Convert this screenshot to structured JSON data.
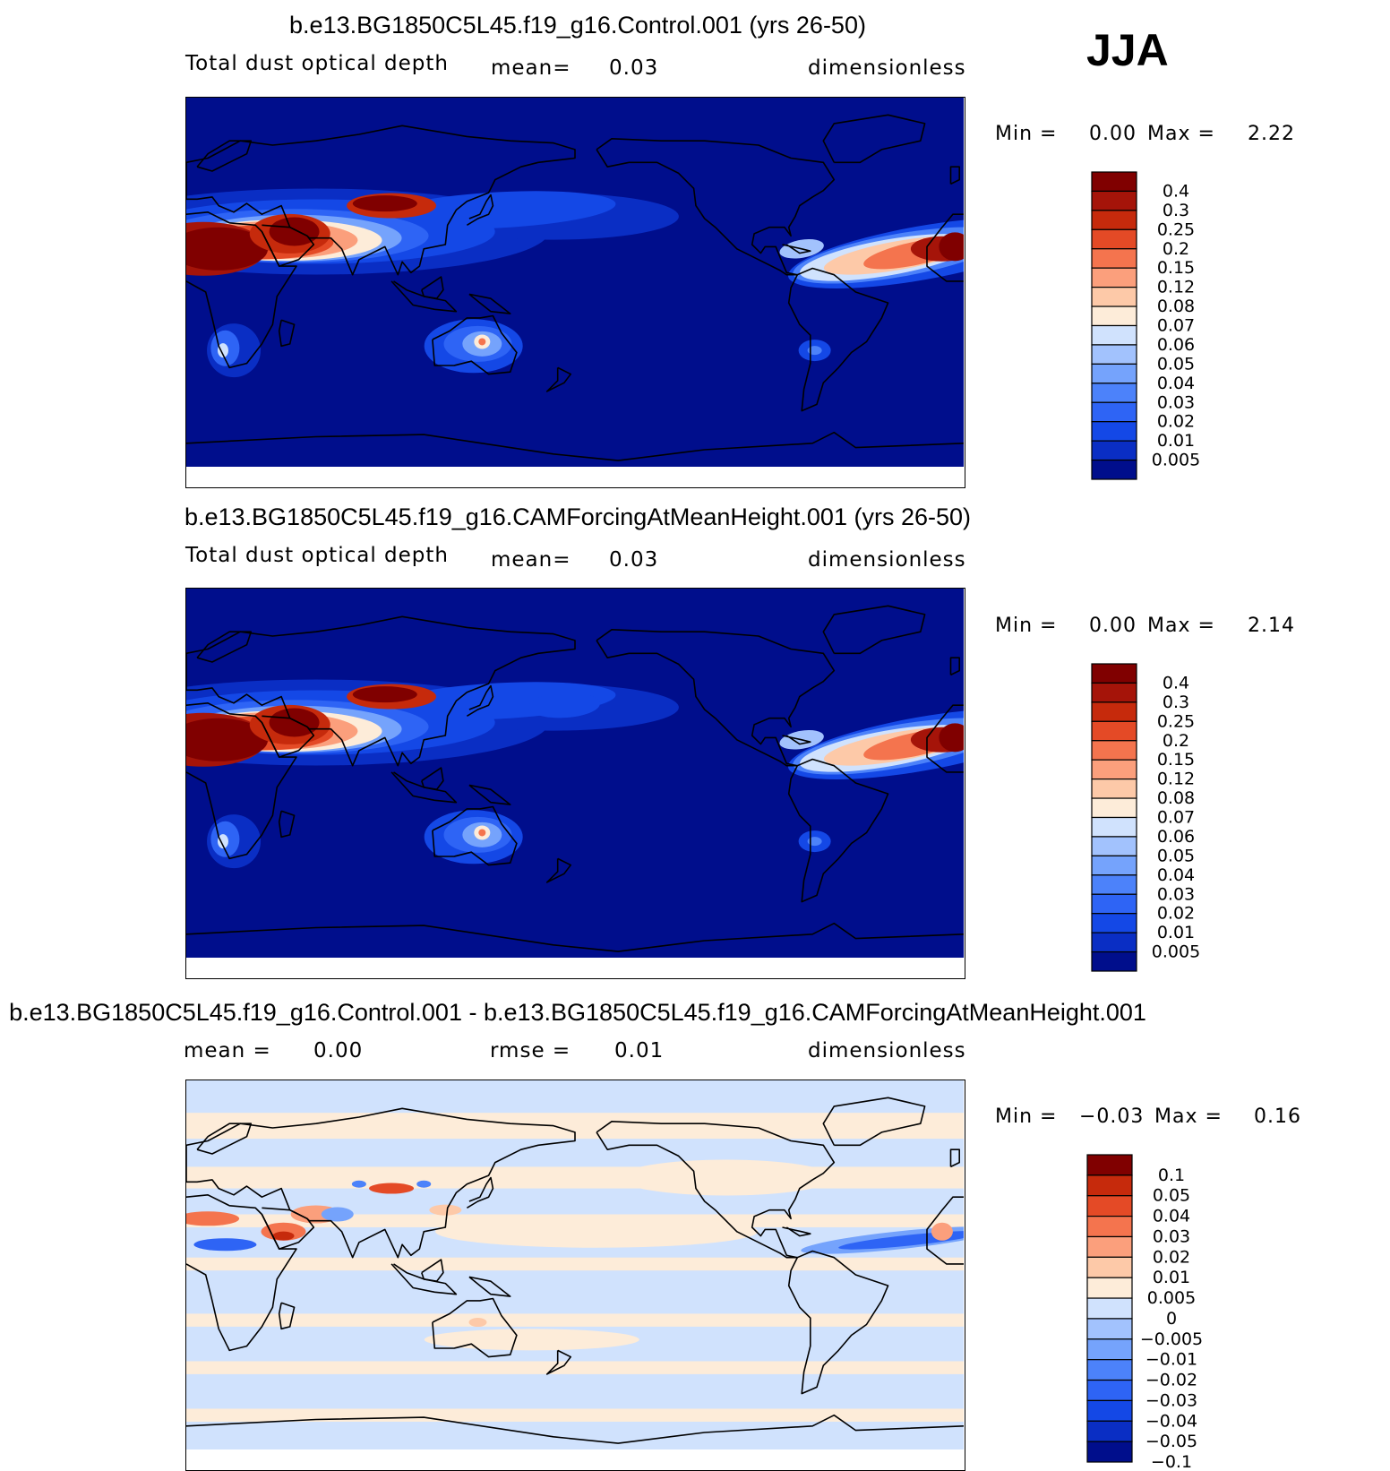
{
  "season": "JJA",
  "colors": {
    "abs_scale": [
      "#000e8c",
      "#0a2ec4",
      "#1448e6",
      "#2e64f5",
      "#4c82fa",
      "#75a3fc",
      "#a2c2fd",
      "#d0e2fd",
      "#fdecd9",
      "#fdc9a8",
      "#fb9f7c",
      "#f4744e",
      "#e44a26",
      "#c62a0c",
      "#a51409",
      "#800000"
    ],
    "diff_scale": [
      "#000e8c",
      "#0a2ec4",
      "#1448e6",
      "#2e64f5",
      "#4c82fa",
      "#75a3fc",
      "#a2c2fd",
      "#d0e2fd",
      "#fdecd9",
      "#fdc9a8",
      "#fb9f7c",
      "#f4744e",
      "#e44a26",
      "#c62a0c",
      "#800000"
    ],
    "coast": "#000000",
    "missing": "#ffffff"
  },
  "panels": [
    {
      "case_title": "b.e13.BG1850C5L45.f19_g16.Control.001 (yrs 26-50)",
      "variable": "Total dust optical depth",
      "stat_label": "mean=",
      "stat_value": "0.03",
      "units": "dimensionless",
      "min_label": "Min =",
      "min_value": "0.00",
      "max_label": "Max =",
      "max_value": "2.22",
      "colorbar_labels": [
        "0.4",
        "0.3",
        "0.25",
        "0.2",
        "0.15",
        "0.12",
        "0.08",
        "0.07",
        "0.06",
        "0.05",
        "0.04",
        "0.03",
        "0.02",
        "0.01",
        "0.005"
      ]
    },
    {
      "case_title": "b.e13.BG1850C5L45.f19_g16.CAMForcingAtMeanHeight.001 (yrs 26-50)",
      "variable": "Total dust optical depth",
      "stat_label": "mean=",
      "stat_value": "0.03",
      "units": "dimensionless",
      "min_label": "Min =",
      "min_value": "0.00",
      "max_label": "Max =",
      "max_value": "2.14",
      "colorbar_labels": [
        "0.4",
        "0.3",
        "0.25",
        "0.2",
        "0.15",
        "0.12",
        "0.08",
        "0.07",
        "0.06",
        "0.05",
        "0.04",
        "0.03",
        "0.02",
        "0.01",
        "0.005"
      ]
    },
    {
      "case_title": "b.e13.BG1850C5L45.f19_g16.Control.001 - b.e13.BG1850C5L45.f19_g16.CAMForcingAtMeanHeight.001",
      "stat_label": "mean =",
      "stat_value": "0.00",
      "rmse_label": "rmse =",
      "rmse_value": "0.01",
      "units": "dimensionless",
      "min_label": "Min =",
      "min_value": "−0.03",
      "max_label": "Max =",
      "max_value": "0.16",
      "colorbar_labels": [
        "0.1",
        "0.05",
        "0.04",
        "0.03",
        "0.02",
        "0.01",
        "0.005",
        "0",
        "−0.005",
        "−0.01",
        "−0.02",
        "−0.03",
        "−0.04",
        "−0.05",
        "−0.1"
      ]
    }
  ],
  "chart_data": [
    {
      "type": "heatmap",
      "title": "b.e13.BG1850C5L45.f19_g16.Control.001 (yrs 26-50)",
      "variable": "Total dust optical depth",
      "units": "dimensionless",
      "mean": 0.03,
      "min": 0.0,
      "max": 2.22,
      "contour_levels": [
        0.005,
        0.01,
        0.02,
        0.03,
        0.04,
        0.05,
        0.06,
        0.07,
        0.08,
        0.12,
        0.15,
        0.2,
        0.25,
        0.3,
        0.4
      ],
      "projection": "cylindrical equidistant, Pacific-centered",
      "lon_range": [
        0,
        360
      ],
      "lat_range": [
        -90,
        90
      ],
      "hotspots": [
        {
          "region": "Sahara / tropical North Atlantic",
          "level": ">0.4"
        },
        {
          "region": "Arabian Peninsula",
          "level": "0.3-0.4"
        },
        {
          "region": "Taklimakan / Gobi",
          "level": "0.3-0.4"
        },
        {
          "region": "Central Australia",
          "level": "0.07-0.15"
        },
        {
          "region": "Southern Africa (Kalahari)",
          "level": "0.06-0.08"
        }
      ]
    },
    {
      "type": "heatmap",
      "title": "b.e13.BG1850C5L45.f19_g16.CAMForcingAtMeanHeight.001 (yrs 26-50)",
      "variable": "Total dust optical depth",
      "units": "dimensionless",
      "mean": 0.03,
      "min": 0.0,
      "max": 2.14,
      "contour_levels": [
        0.005,
        0.01,
        0.02,
        0.03,
        0.04,
        0.05,
        0.06,
        0.07,
        0.08,
        0.12,
        0.15,
        0.2,
        0.25,
        0.3,
        0.4
      ],
      "projection": "cylindrical equidistant, Pacific-centered",
      "lon_range": [
        0,
        360
      ],
      "lat_range": [
        -90,
        90
      ],
      "hotspots": [
        {
          "region": "Sahara / tropical North Atlantic",
          "level": ">0.4"
        },
        {
          "region": "Arabian Peninsula",
          "level": "0.3-0.4"
        },
        {
          "region": "Taklimakan / Gobi",
          "level": "0.3-0.4"
        },
        {
          "region": "Central Australia",
          "level": "0.07-0.15"
        },
        {
          "region": "Southern Africa (Kalahari)",
          "level": "0.06-0.08"
        }
      ]
    },
    {
      "type": "heatmap",
      "title": "b.e13.BG1850C5L45.f19_g16.Control.001 - b.e13.BG1850C5L45.f19_g16.CAMForcingAtMeanHeight.001",
      "units": "dimensionless",
      "mean": 0.0,
      "rmse": 0.01,
      "min": -0.03,
      "max": 0.16,
      "contour_levels": [
        -0.1,
        -0.05,
        -0.04,
        -0.03,
        -0.02,
        -0.01,
        -0.005,
        0,
        0.005,
        0.01,
        0.02,
        0.03,
        0.04,
        0.05,
        0.1
      ],
      "projection": "cylindrical equidistant, Pacific-centered",
      "lon_range": [
        0,
        360
      ],
      "lat_range": [
        -90,
        90
      ]
    }
  ]
}
